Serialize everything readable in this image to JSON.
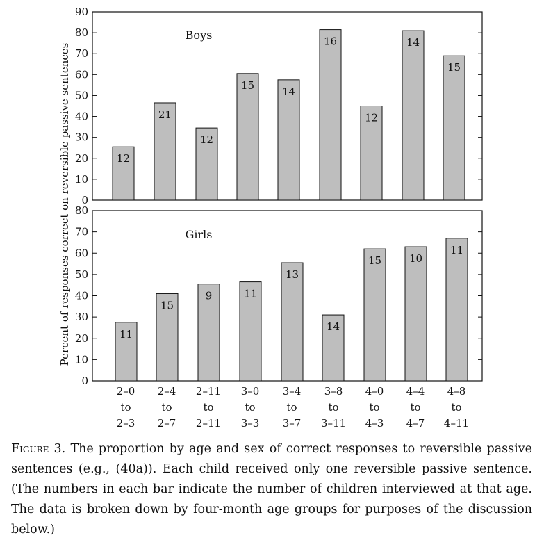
{
  "chart_data": [
    {
      "type": "bar",
      "panel_label": "Boys",
      "categories": [
        "2–0 to 2–3",
        "2–4 to 2–7",
        "2–11 to 2–11",
        "3–0 to 3–3",
        "3–4 to 3–7",
        "3–8 to 3–11",
        "4–0 to 4–3",
        "4–4 to 4–7",
        "4–8 to 4–11"
      ],
      "values": [
        25.5,
        46.5,
        34.5,
        60.5,
        57.5,
        81.5,
        45,
        81,
        69
      ],
      "bar_labels": [
        "12",
        "21",
        "12",
        "15",
        "14",
        "16",
        "12",
        "14",
        "15"
      ],
      "ylim": [
        0,
        90
      ],
      "yticks": [
        0,
        10,
        20,
        30,
        40,
        50,
        60,
        70,
        80,
        90
      ],
      "bar_color": "#bebebe"
    },
    {
      "type": "bar",
      "panel_label": "Girls",
      "categories": [
        "2–0 to 2–3",
        "2–4 to 2–7",
        "2–11 to 2–11",
        "3–0 to 3–3",
        "3–4 to 3–7",
        "3–8 to 3–11",
        "4–0 to 4–3",
        "4–4 to 4–7",
        "4–8 to 4–11"
      ],
      "values": [
        27.5,
        41,
        45.5,
        46.5,
        55.5,
        31,
        62,
        63,
        67
      ],
      "bar_labels": [
        "11",
        "15",
        "9",
        "11",
        "13",
        "14",
        "15",
        "10",
        "11"
      ],
      "ylim": [
        0,
        80
      ],
      "yticks": [
        0,
        10,
        20,
        30,
        40,
        50,
        60,
        70,
        80
      ],
      "bar_color": "#bebebe"
    }
  ],
  "ylabel": "Percent of responses correct on reversible passive sentences",
  "x_categories": [
    [
      "2–0",
      "to",
      "2–3"
    ],
    [
      "2–4",
      "to",
      "2–7"
    ],
    [
      "2–11",
      "to",
      "2–11"
    ],
    [
      "3–0",
      "to",
      "3–3"
    ],
    [
      "3–4",
      "to",
      "3–7"
    ],
    [
      "3–8",
      "to",
      "3–11"
    ],
    [
      "4–0",
      "to",
      "4–3"
    ],
    [
      "4–4",
      "to",
      "4–7"
    ],
    [
      "4–8",
      "to",
      "4–11"
    ]
  ],
  "caption": {
    "label": "Figure 3.",
    "text": "The proportion by age and sex of correct responses to reversible passive sentences (e.g., (40a)). Each child received only one reversible passive sentence. (The numbers in each bar indicate the number of children interviewed at that age. The data is broken down by four-month age groups for purposes of the discussion below.)"
  }
}
